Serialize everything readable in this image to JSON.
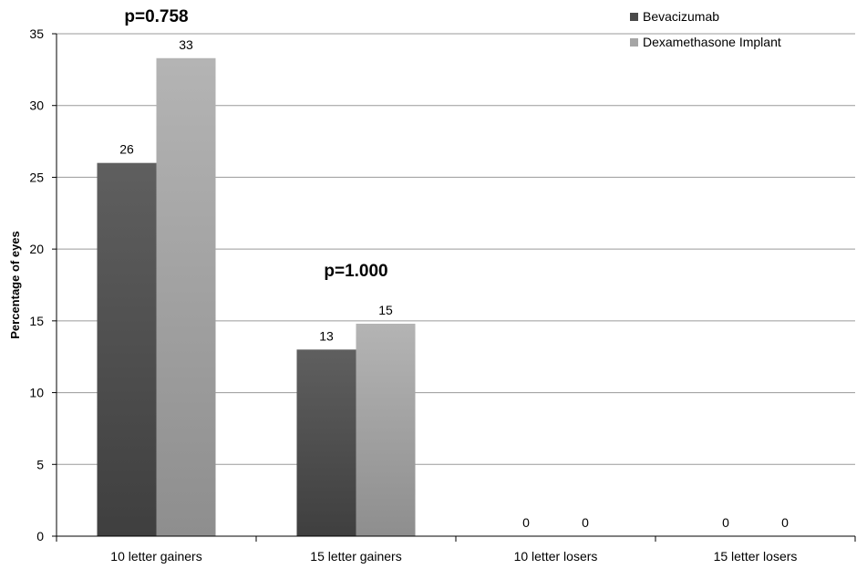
{
  "chart_data": {
    "type": "bar",
    "categories": [
      "10 letter gainers",
      "15 letter gainers",
      "10 letter losers",
      "15 letter losers"
    ],
    "series": [
      {
        "name": "Bevacizumab",
        "values": [
          26,
          13,
          0,
          0
        ],
        "labels": [
          "26",
          "13",
          "0",
          "0"
        ]
      },
      {
        "name": "Dexamethasone Implant",
        "values": [
          33.3,
          14.8,
          0,
          0
        ],
        "labels": [
          "33",
          "15",
          "0",
          "0"
        ]
      }
    ],
    "ylabel": "Percentage of eyes",
    "xlabel": "",
    "ylim": [
      0,
      35
    ],
    "yticks": [
      "0",
      "5",
      "10",
      "15",
      "20",
      "25",
      "30",
      "35"
    ],
    "grid": true,
    "legend_position": "top-right",
    "annotations": [
      {
        "text": "p=0.758",
        "category": "10 letter gainers"
      },
      {
        "text": "p=1.000",
        "category": "15 letter gainers"
      }
    ],
    "colors": {
      "Bevacizumab": "#555555",
      "Dexamethasone Implant": "#aaaaaa",
      "grid": "#9a9a9a"
    }
  }
}
